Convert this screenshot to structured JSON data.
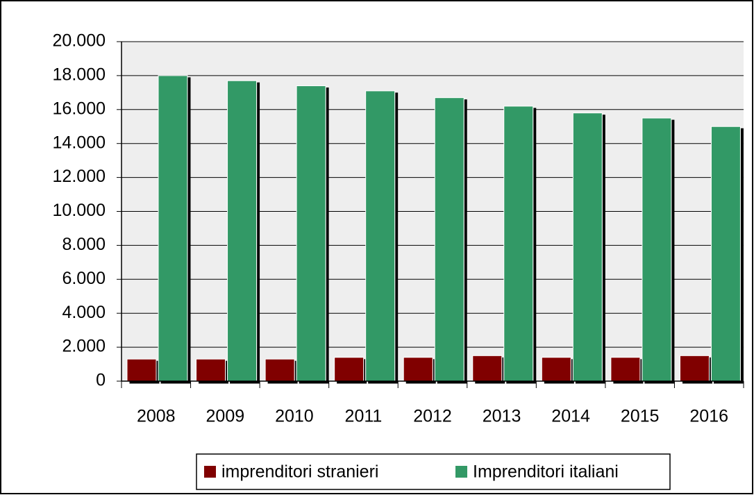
{
  "chart_data": {
    "type": "bar",
    "categories": [
      "2008",
      "2009",
      "2010",
      "2011",
      "2012",
      "2013",
      "2014",
      "2015",
      "2016"
    ],
    "series": [
      {
        "name": "imprenditori stranieri",
        "color": "#800000",
        "values": [
          1300,
          1300,
          1300,
          1400,
          1400,
          1500,
          1400,
          1400,
          1500
        ]
      },
      {
        "name": "Imprenditori italiani",
        "color": "#339966",
        "values": [
          18000,
          17700,
          17400,
          17100,
          16700,
          16200,
          15800,
          15500,
          15000
        ]
      }
    ],
    "ylim": [
      0,
      20000
    ],
    "yticks": [
      0,
      {
        "value": 2000,
        "label": "2.000"
      },
      {
        "value": 4000,
        "label": "4.000"
      },
      {
        "value": 6000,
        "label": "6.000"
      },
      {
        "value": 8000,
        "label": "8.000"
      },
      {
        "value": 10000,
        "label": "10.000"
      },
      {
        "value": 12000,
        "label": "12.000"
      },
      {
        "value": 14000,
        "label": "14.000"
      },
      {
        "value": 16000,
        "label": "16.000"
      },
      {
        "value": 18000,
        "label": "18.000"
      },
      {
        "value": 20000,
        "label": "20.000"
      }
    ],
    "grid": true,
    "legend": "bottom"
  }
}
